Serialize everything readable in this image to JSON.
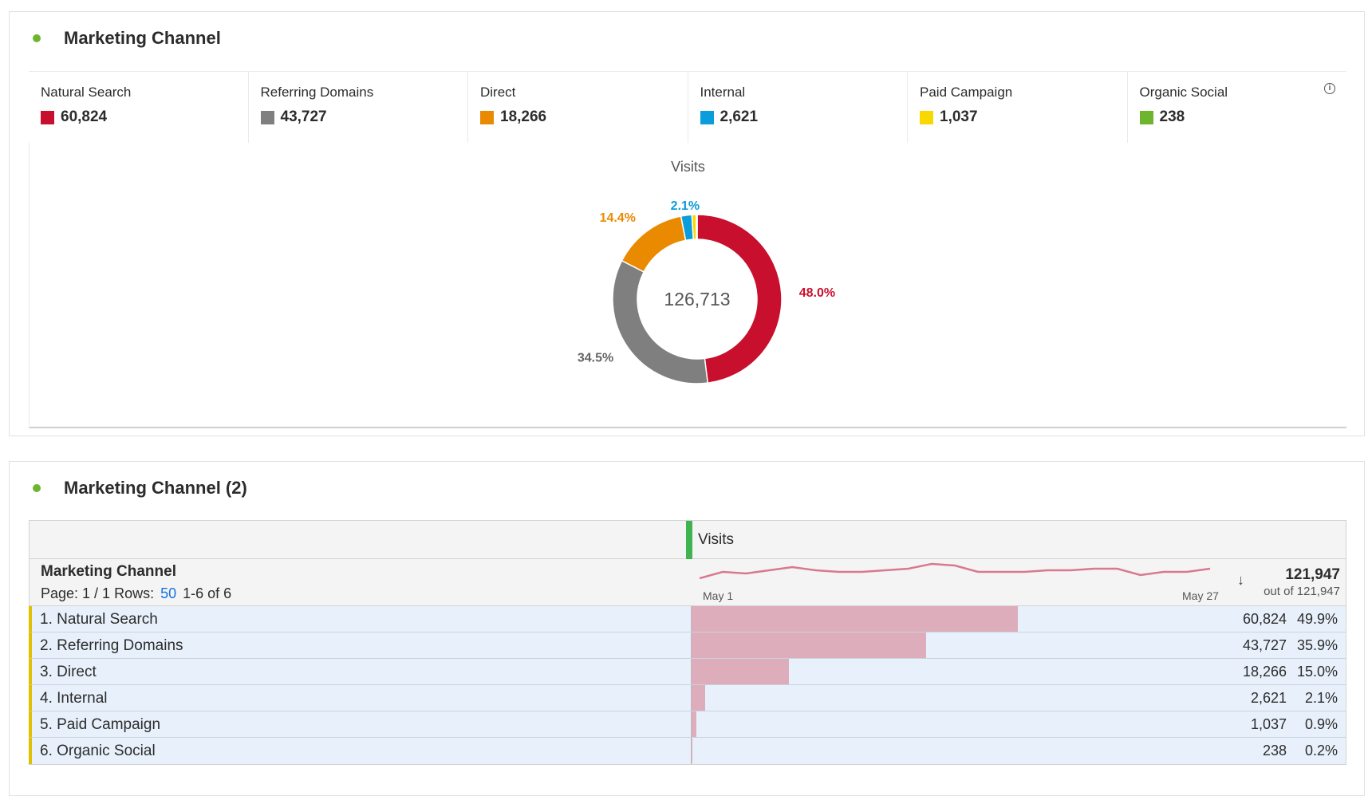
{
  "panel1": {
    "title": "Marketing Channel",
    "chart_title": "Visits",
    "total": "126,713",
    "info_icon": "info-icon"
  },
  "summary": [
    {
      "label": "Natural Search",
      "value": "60,824",
      "color": "#c8102e"
    },
    {
      "label": "Referring Domains",
      "value": "43,727",
      "color": "#7f7f7f"
    },
    {
      "label": "Direct",
      "value": "18,266",
      "color": "#ea8a00"
    },
    {
      "label": "Internal",
      "value": "2,621",
      "color": "#0a9ddb"
    },
    {
      "label": "Paid Campaign",
      "value": "1,037",
      "color": "#f8d800"
    },
    {
      "label": "Organic Social",
      "value": "238",
      "color": "#6cb52d"
    }
  ],
  "chart_data": {
    "type": "pie",
    "title": "Visits",
    "center_label": "126,713",
    "categories": [
      "Natural Search",
      "Referring Domains",
      "Direct",
      "Internal",
      "Paid Campaign",
      "Organic Social"
    ],
    "values": [
      60824,
      43727,
      18266,
      2621,
      1037,
      238
    ],
    "labels": [
      "48.0%",
      "34.5%",
      "14.4%",
      "2.1%",
      "",
      ""
    ]
  },
  "panel2": {
    "title": "Marketing Channel (2)",
    "metric_header": "Visits",
    "dim_header": "Marketing Channel",
    "page_label": "Page: 1 / 1 Rows:",
    "rows_value": "50",
    "range": "1-6 of 6",
    "spark_start": "May 1",
    "spark_end": "May 27",
    "total": "121,947",
    "total_sub": "out of 121,947",
    "sparkline": [
      10,
      14,
      13,
      15,
      17,
      15,
      14,
      14,
      15,
      16,
      19,
      18,
      14,
      14,
      14,
      15,
      15,
      16,
      16,
      12,
      14,
      14,
      16
    ]
  },
  "rows": [
    {
      "label": "1.  Natural Search",
      "value": "60,824",
      "pct": "49.9%",
      "n": 60824
    },
    {
      "label": "2.  Referring Domains",
      "value": "43,727",
      "pct": "35.9%",
      "n": 43727
    },
    {
      "label": "3.  Direct",
      "value": "18,266",
      "pct": "15.0%",
      "n": 18266
    },
    {
      "label": "4.  Internal",
      "value": "2,621",
      "pct": "2.1%",
      "n": 2621
    },
    {
      "label": "5.  Paid Campaign",
      "value": "1,037",
      "pct": "0.9%",
      "n": 1037
    },
    {
      "label": "6.  Organic Social",
      "value": "238",
      "pct": "0.2%",
      "n": 238
    }
  ]
}
